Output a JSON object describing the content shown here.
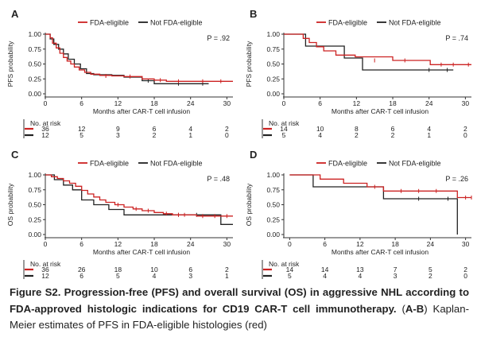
{
  "chart_data": [
    {
      "panel": "A",
      "type": "line",
      "title": "",
      "xlabel": "Months after CAR-T cell infusion",
      "ylabel": "PFS probability",
      "xlim": [
        0,
        31
      ],
      "ylim": [
        0,
        1
      ],
      "xticks": [
        0,
        6,
        12,
        18,
        24,
        30
      ],
      "yticks": [
        "0.00",
        "0.25",
        "0.50",
        "0.75",
        "1.00"
      ],
      "p_value": "P = .92",
      "legend_position": "top",
      "series": [
        {
          "name": "FDA-eligible",
          "color": "#cc2222",
          "steps": [
            [
              0,
              1
            ],
            [
              0.8,
              0.94
            ],
            [
              1.2,
              0.85
            ],
            [
              1.8,
              0.77
            ],
            [
              2.4,
              0.68
            ],
            [
              3,
              0.61
            ],
            [
              3.6,
              0.55
            ],
            [
              4.2,
              0.5
            ],
            [
              4.8,
              0.45
            ],
            [
              5.6,
              0.4
            ],
            [
              6.5,
              0.36
            ],
            [
              7.5,
              0.33
            ],
            [
              9,
              0.31
            ],
            [
              11,
              0.3
            ],
            [
              13,
              0.29
            ],
            [
              16,
              0.25
            ],
            [
              18,
              0.23
            ],
            [
              20,
              0.21
            ],
            [
              31,
              0.21
            ]
          ],
          "censors": [
            [
              10,
              0.3
            ],
            [
              14,
              0.29
            ],
            [
              19,
              0.23
            ],
            [
              22,
              0.21
            ],
            [
              26,
              0.21
            ],
            [
              29,
              0.21
            ]
          ]
        },
        {
          "name": "Not FDA-eligible",
          "color": "#222222",
          "steps": [
            [
              0,
              1
            ],
            [
              0.8,
              0.92
            ],
            [
              1.4,
              0.83
            ],
            [
              2.2,
              0.75
            ],
            [
              3,
              0.67
            ],
            [
              3.8,
              0.58
            ],
            [
              4.8,
              0.5
            ],
            [
              5.8,
              0.42
            ],
            [
              6.8,
              0.34
            ],
            [
              8,
              0.32
            ],
            [
              11,
              0.31
            ],
            [
              13,
              0.28
            ],
            [
              16,
              0.22
            ],
            [
              18,
              0.17
            ],
            [
              27,
              0.17
            ]
          ],
          "censors": [
            [
              17,
              0.22
            ],
            [
              22,
              0.17
            ],
            [
              26,
              0.17
            ]
          ]
        }
      ],
      "risk_table": {
        "label": "No. at risk",
        "rows": [
          [
            "36",
            "12",
            "9",
            "6",
            "4",
            "2"
          ],
          [
            "12",
            "5",
            "3",
            "2",
            "1",
            "0"
          ]
        ]
      }
    },
    {
      "panel": "B",
      "type": "line",
      "title": "",
      "xlabel": "Months after CAR-T cell infusion",
      "ylabel": "PFS probability",
      "xlim": [
        0,
        31
      ],
      "ylim": [
        0,
        1
      ],
      "xticks": [
        0,
        6,
        12,
        18,
        24,
        30
      ],
      "yticks": [
        "0.00",
        "0.25",
        "0.50",
        "0.75",
        "1.00"
      ],
      "p_value": "P = .74",
      "legend_position": "top",
      "series": [
        {
          "name": "FDA-eligible",
          "color": "#cc2222",
          "steps": [
            [
              0,
              1
            ],
            [
              3.2,
              0.93
            ],
            [
              4.2,
              0.86
            ],
            [
              5.4,
              0.79
            ],
            [
              6.6,
              0.72
            ],
            [
              8.6,
              0.65
            ],
            [
              11.8,
              0.62
            ],
            [
              18,
              0.56
            ],
            [
              24.2,
              0.49
            ],
            [
              31,
              0.49
            ]
          ],
          "censors": [
            [
              15,
              0.56
            ],
            [
              20,
              0.56
            ],
            [
              26,
              0.49
            ],
            [
              28,
              0.49
            ],
            [
              30.5,
              0.49
            ]
          ]
        },
        {
          "name": "Not FDA-eligible",
          "color": "#222222",
          "steps": [
            [
              0,
              1
            ],
            [
              3.6,
              0.8
            ],
            [
              10,
              0.6
            ],
            [
              13,
              0.4
            ],
            [
              28,
              0.4
            ]
          ],
          "censors": [
            [
              24,
              0.4
            ],
            [
              27,
              0.4
            ]
          ]
        }
      ],
      "risk_table": {
        "label": "No. at risk",
        "rows": [
          [
            "14",
            "10",
            "8",
            "6",
            "4",
            "2"
          ],
          [
            "5",
            "4",
            "2",
            "2",
            "1",
            "0"
          ]
        ]
      }
    },
    {
      "panel": "C",
      "type": "line",
      "title": "",
      "xlabel": "Months after CAR-T cell infusion",
      "ylabel": "OS probability",
      "xlim": [
        0,
        31
      ],
      "ylim": [
        0,
        1
      ],
      "xticks": [
        0,
        6,
        12,
        18,
        24,
        30
      ],
      "yticks": [
        "0.00",
        "0.25",
        "0.50",
        "0.75",
        "1.00"
      ],
      "p_value": "P = .48",
      "legend_position": "top",
      "series": [
        {
          "name": "FDA-eligible",
          "color": "#cc2222",
          "steps": [
            [
              0,
              1
            ],
            [
              1,
              0.97
            ],
            [
              2,
              0.94
            ],
            [
              3,
              0.9
            ],
            [
              4,
              0.86
            ],
            [
              5,
              0.81
            ],
            [
              6,
              0.74
            ],
            [
              7,
              0.68
            ],
            [
              8,
              0.63
            ],
            [
              9,
              0.58
            ],
            [
              10,
              0.54
            ],
            [
              11.5,
              0.5
            ],
            [
              13,
              0.46
            ],
            [
              14.5,
              0.43
            ],
            [
              16,
              0.4
            ],
            [
              18,
              0.37
            ],
            [
              19.5,
              0.35
            ],
            [
              21,
              0.33
            ],
            [
              25,
              0.31
            ],
            [
              31,
              0.31
            ]
          ],
          "censors": [
            [
              12,
              0.5
            ],
            [
              15,
              0.43
            ],
            [
              17,
              0.4
            ],
            [
              20,
              0.35
            ],
            [
              22,
              0.33
            ],
            [
              23,
              0.33
            ],
            [
              26,
              0.31
            ],
            [
              28,
              0.31
            ],
            [
              30,
              0.31
            ]
          ]
        },
        {
          "name": "Not FDA-eligible",
          "color": "#222222",
          "steps": [
            [
              0,
              1
            ],
            [
              1.5,
              0.92
            ],
            [
              3,
              0.83
            ],
            [
              4.5,
              0.75
            ],
            [
              6,
              0.58
            ],
            [
              8,
              0.5
            ],
            [
              10.5,
              0.42
            ],
            [
              13,
              0.33
            ],
            [
              18,
              0.33
            ],
            [
              29,
              0.17
            ],
            [
              31,
              0.17
            ]
          ],
          "censors": [
            [
              22,
              0.33
            ],
            [
              25,
              0.33
            ]
          ]
        }
      ],
      "risk_table": {
        "label": "No. at risk",
        "rows": [
          [
            "36",
            "26",
            "18",
            "10",
            "6",
            "2"
          ],
          [
            "12",
            "6",
            "5",
            "4",
            "3",
            "1"
          ]
        ]
      }
    },
    {
      "panel": "D",
      "type": "line",
      "title": "",
      "xlabel": "Months after CAR-T cell infusion",
      "ylabel": "OS probability",
      "xlim": [
        -1,
        31
      ],
      "ylim": [
        0,
        1
      ],
      "xticks": [
        0,
        6,
        12,
        18,
        24,
        30
      ],
      "yticks": [
        "0.00",
        "0.25",
        "0.50",
        "0.75",
        "1.00"
      ],
      "p_value": "P = .26",
      "legend_position": "top",
      "series": [
        {
          "name": "FDA-eligible",
          "color": "#cc2222",
          "steps": [
            [
              0,
              1
            ],
            [
              5.2,
              0.93
            ],
            [
              9.2,
              0.86
            ],
            [
              13.2,
              0.8
            ],
            [
              16,
              0.73
            ],
            [
              28.6,
              0.62
            ],
            [
              31,
              0.62
            ]
          ],
          "censors": [
            [
              14.5,
              0.8
            ],
            [
              19,
              0.73
            ],
            [
              22,
              0.73
            ],
            [
              25,
              0.73
            ],
            [
              30,
              0.62
            ],
            [
              31,
              0.62
            ]
          ]
        },
        {
          "name": "Not FDA-eligible",
          "color": "#222222",
          "steps": [
            [
              0,
              1
            ],
            [
              4,
              0.8
            ],
            [
              16,
              0.6
            ],
            [
              28.6,
              0
            ],
            [
              28.6,
              0
            ]
          ],
          "censors": [
            [
              22,
              0.6
            ],
            [
              27,
              0.6
            ]
          ]
        }
      ],
      "risk_table": {
        "label": "No. at risk",
        "rows": [
          [
            "14",
            "14",
            "13",
            "7",
            "5",
            "2"
          ],
          [
            "5",
            "4",
            "4",
            "3",
            "2",
            "0"
          ]
        ]
      }
    }
  ],
  "caption": {
    "bold": "Figure S2. Progression-free (PFS) and overall survival (OS) in aggressive NHL according to FDA-approved histologic indications for CD19 CAR-T cell immunotherapy.",
    "paren_open": " (",
    "range_label": "A-B",
    "rest": ") Kaplan-Meier estimates of PFS in FDA-eligible histologies (red)"
  }
}
